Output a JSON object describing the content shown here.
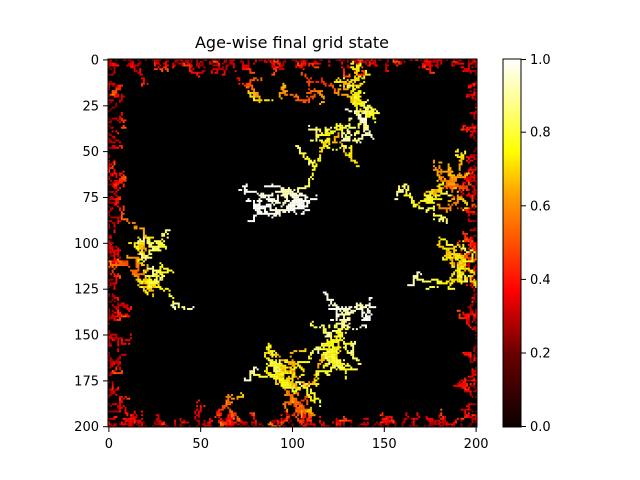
{
  "chart_data": {
    "type": "heatmap",
    "title": "Age-wise final grid state",
    "xlabel": "",
    "ylabel": "",
    "grid_size": 201,
    "xlim": [
      0,
      200
    ],
    "ylim": [
      200,
      0
    ],
    "xticks": [
      "0",
      "50",
      "100",
      "150",
      "200"
    ],
    "yticks": [
      "0",
      "25",
      "50",
      "75",
      "100",
      "125",
      "150",
      "175",
      "200"
    ],
    "colormap": "hot",
    "colorbar": {
      "range": [
        0.0,
        1.0
      ],
      "ticks": [
        "0.0",
        "0.2",
        "0.4",
        "0.6",
        "0.8",
        "1.0"
      ]
    },
    "background_value": 0.0,
    "structures": [
      {
        "region": "top-edge",
        "age_range": [
          0.15,
          0.55
        ]
      },
      {
        "region": "bottom-edge",
        "age_range": [
          0.15,
          0.55
        ]
      },
      {
        "region": "left-edge",
        "age_range": [
          0.15,
          0.55
        ]
      },
      {
        "region": "right-edge",
        "age_range": [
          0.15,
          0.55
        ]
      },
      {
        "region": "central-upper-branch",
        "age_range": [
          0.55,
          1.0
        ]
      },
      {
        "region": "central-lower-branch",
        "age_range": [
          0.5,
          0.95
        ]
      },
      {
        "region": "left-middle-branch",
        "age_range": [
          0.5,
          0.85
        ]
      },
      {
        "region": "right-middle-branch",
        "age_range": [
          0.5,
          0.95
        ]
      },
      {
        "region": "top-left-branch",
        "age_range": [
          0.55,
          0.8
        ]
      }
    ]
  }
}
